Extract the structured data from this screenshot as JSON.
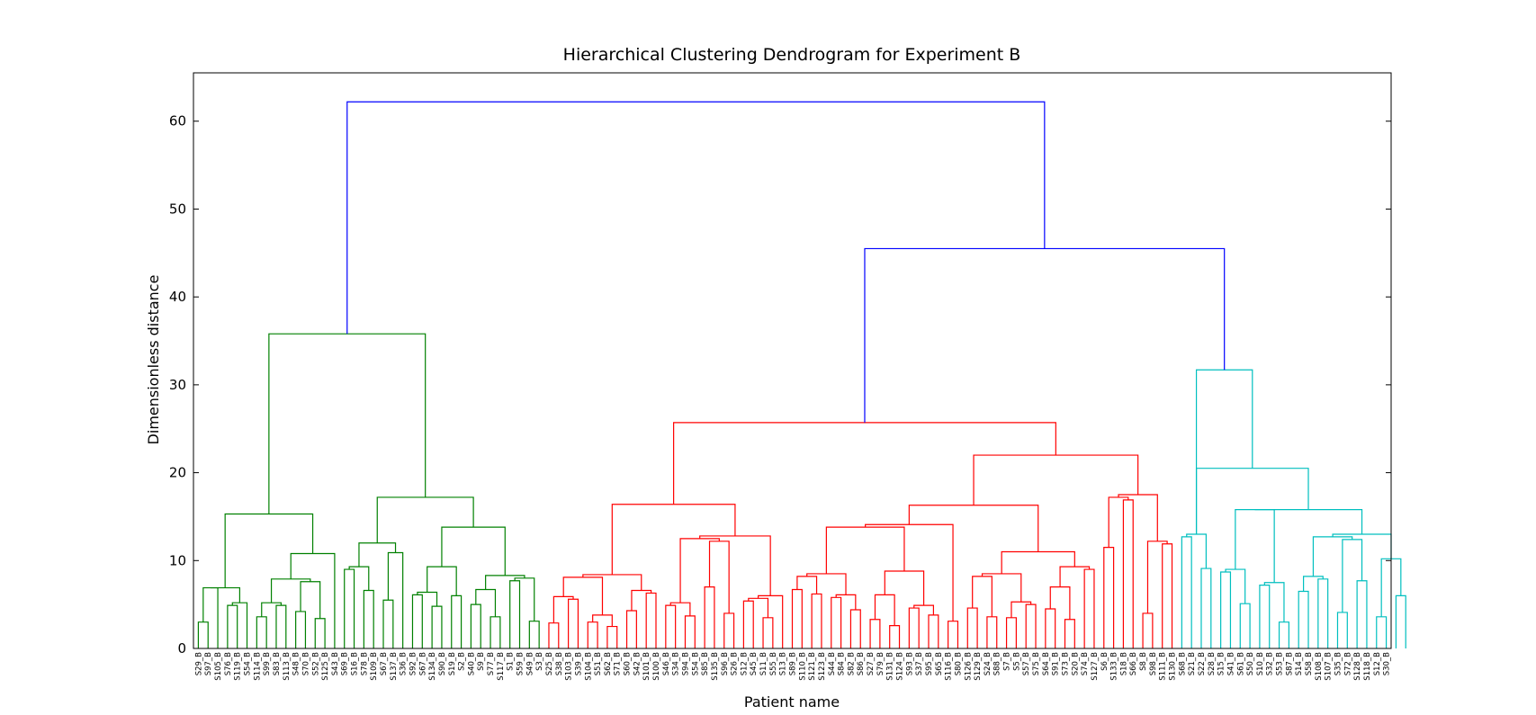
{
  "chart_data": {
    "type": "dendrogram",
    "title": "Hierarchical Clustering Dendrogram for Experiment B",
    "xlabel": "Patient name",
    "ylabel": "Dimensionless distance",
    "ylim": [
      0,
      65.5
    ],
    "yticks": [
      0,
      10,
      20,
      30,
      40,
      50,
      60
    ],
    "grid": false,
    "colors": {
      "green": "#008000",
      "red": "#ff0000",
      "cyan": "#00bfbf",
      "blue": "#0000ff"
    },
    "leaves": [
      "S29_B",
      "S97_B",
      "S105_B",
      "S76_B",
      "S119_B",
      "S54_B",
      "S114_B",
      "S99_B",
      "S83_B",
      "S113_B",
      "S48_B",
      "S70_B",
      "S52_B",
      "S125_B",
      "S43_B",
      "S69_B",
      "S16_B",
      "S78_B",
      "S109_B",
      "S67_B",
      "S137_B",
      "S36_B",
      "S92_B",
      "S67_B",
      "S134_B",
      "S90_B",
      "S19_B",
      "S2_B",
      "S40_B",
      "S9_B",
      "S77_B",
      "S117_B",
      "S1_B",
      "S59_B",
      "S49_B",
      "S3_B",
      "S25_B",
      "S38_B",
      "S103_B",
      "S39_B",
      "S104_B",
      "S51_B",
      "S62_B",
      "S71_B",
      "S60_B",
      "S42_B",
      "S101_B",
      "S100_B",
      "S46_B",
      "S34_B",
      "S94_B",
      "S54_B",
      "S85_B",
      "S135_B",
      "S96_B",
      "S26_B",
      "S12_B",
      "S45_B",
      "S11_B",
      "S55_B",
      "S13_B",
      "S89_B",
      "S110_B",
      "S121_B",
      "S123_B",
      "S44_B",
      "S84_B",
      "S82_B",
      "S86_B",
      "S27_B",
      "S79_B",
      "S131_B",
      "S124_B",
      "S93_B",
      "S37_B",
      "S95_B",
      "S65_B",
      "S116_B",
      "S80_B",
      "S126_B",
      "S129_B",
      "S24_B",
      "S88_B",
      "S7_B",
      "S5_B",
      "S57_B",
      "S75_B",
      "S64_B",
      "S91_B",
      "S73_B",
      "S20_B",
      "S74_B",
      "S127_B",
      "S6_B",
      "S133_B",
      "S18_B",
      "S66_B",
      "S8_B",
      "S98_B",
      "S111_B",
      "S130_B",
      "S68_B",
      "S21_B",
      "S22_B",
      "S28_B",
      "S15_B",
      "S41_B",
      "S61_B",
      "S50_B",
      "S10_B",
      "S32_B",
      "S53_B",
      "S87_B",
      "S14_B",
      "S58_B",
      "S108_B",
      "S107_B",
      "S35_B",
      "S72_B",
      "S128_B",
      "S118_B",
      "S12_B",
      "S30_B"
    ],
    "links": [
      {
        "c": "green",
        "h": 3.0,
        "l": 1,
        "r": 2
      },
      {
        "c": "green",
        "h": 6.9,
        "l": 0,
        "r": "0"
      },
      {
        "c": "green",
        "h": 4.9,
        "l": 3,
        "r": 4
      },
      {
        "c": "green",
        "h": 3.4,
        "l": 4,
        "r": 5
      },
      {
        "c": "green",
        "h": 3.6,
        "l": 6,
        "r": 7
      },
      {
        "c": "green",
        "h": 10.8,
        "l": 6.5,
        "r": 11.5
      },
      {
        "c": "green",
        "h": 7.6,
        "l": 9,
        "r": 13
      },
      {
        "c": "green",
        "h": 4.9,
        "l": 10,
        "r": 11
      },
      {
        "c": "green",
        "h": 4.2,
        "l": 11,
        "r": 12
      },
      {
        "c": "green",
        "h": 3.4,
        "l": 12,
        "r": 13
      },
      {
        "c": "green",
        "h": 6.7,
        "l": 12,
        "r": 14
      },
      {
        "c": "green",
        "h": 5.0,
        "l": 15,
        "r": 16
      },
      {
        "c": "green",
        "h": 3.5,
        "l": 16,
        "r": 17
      },
      {
        "c": "green",
        "h": 15.3,
        "l": 2.5,
        "r": 8.5
      }
    ]
  }
}
